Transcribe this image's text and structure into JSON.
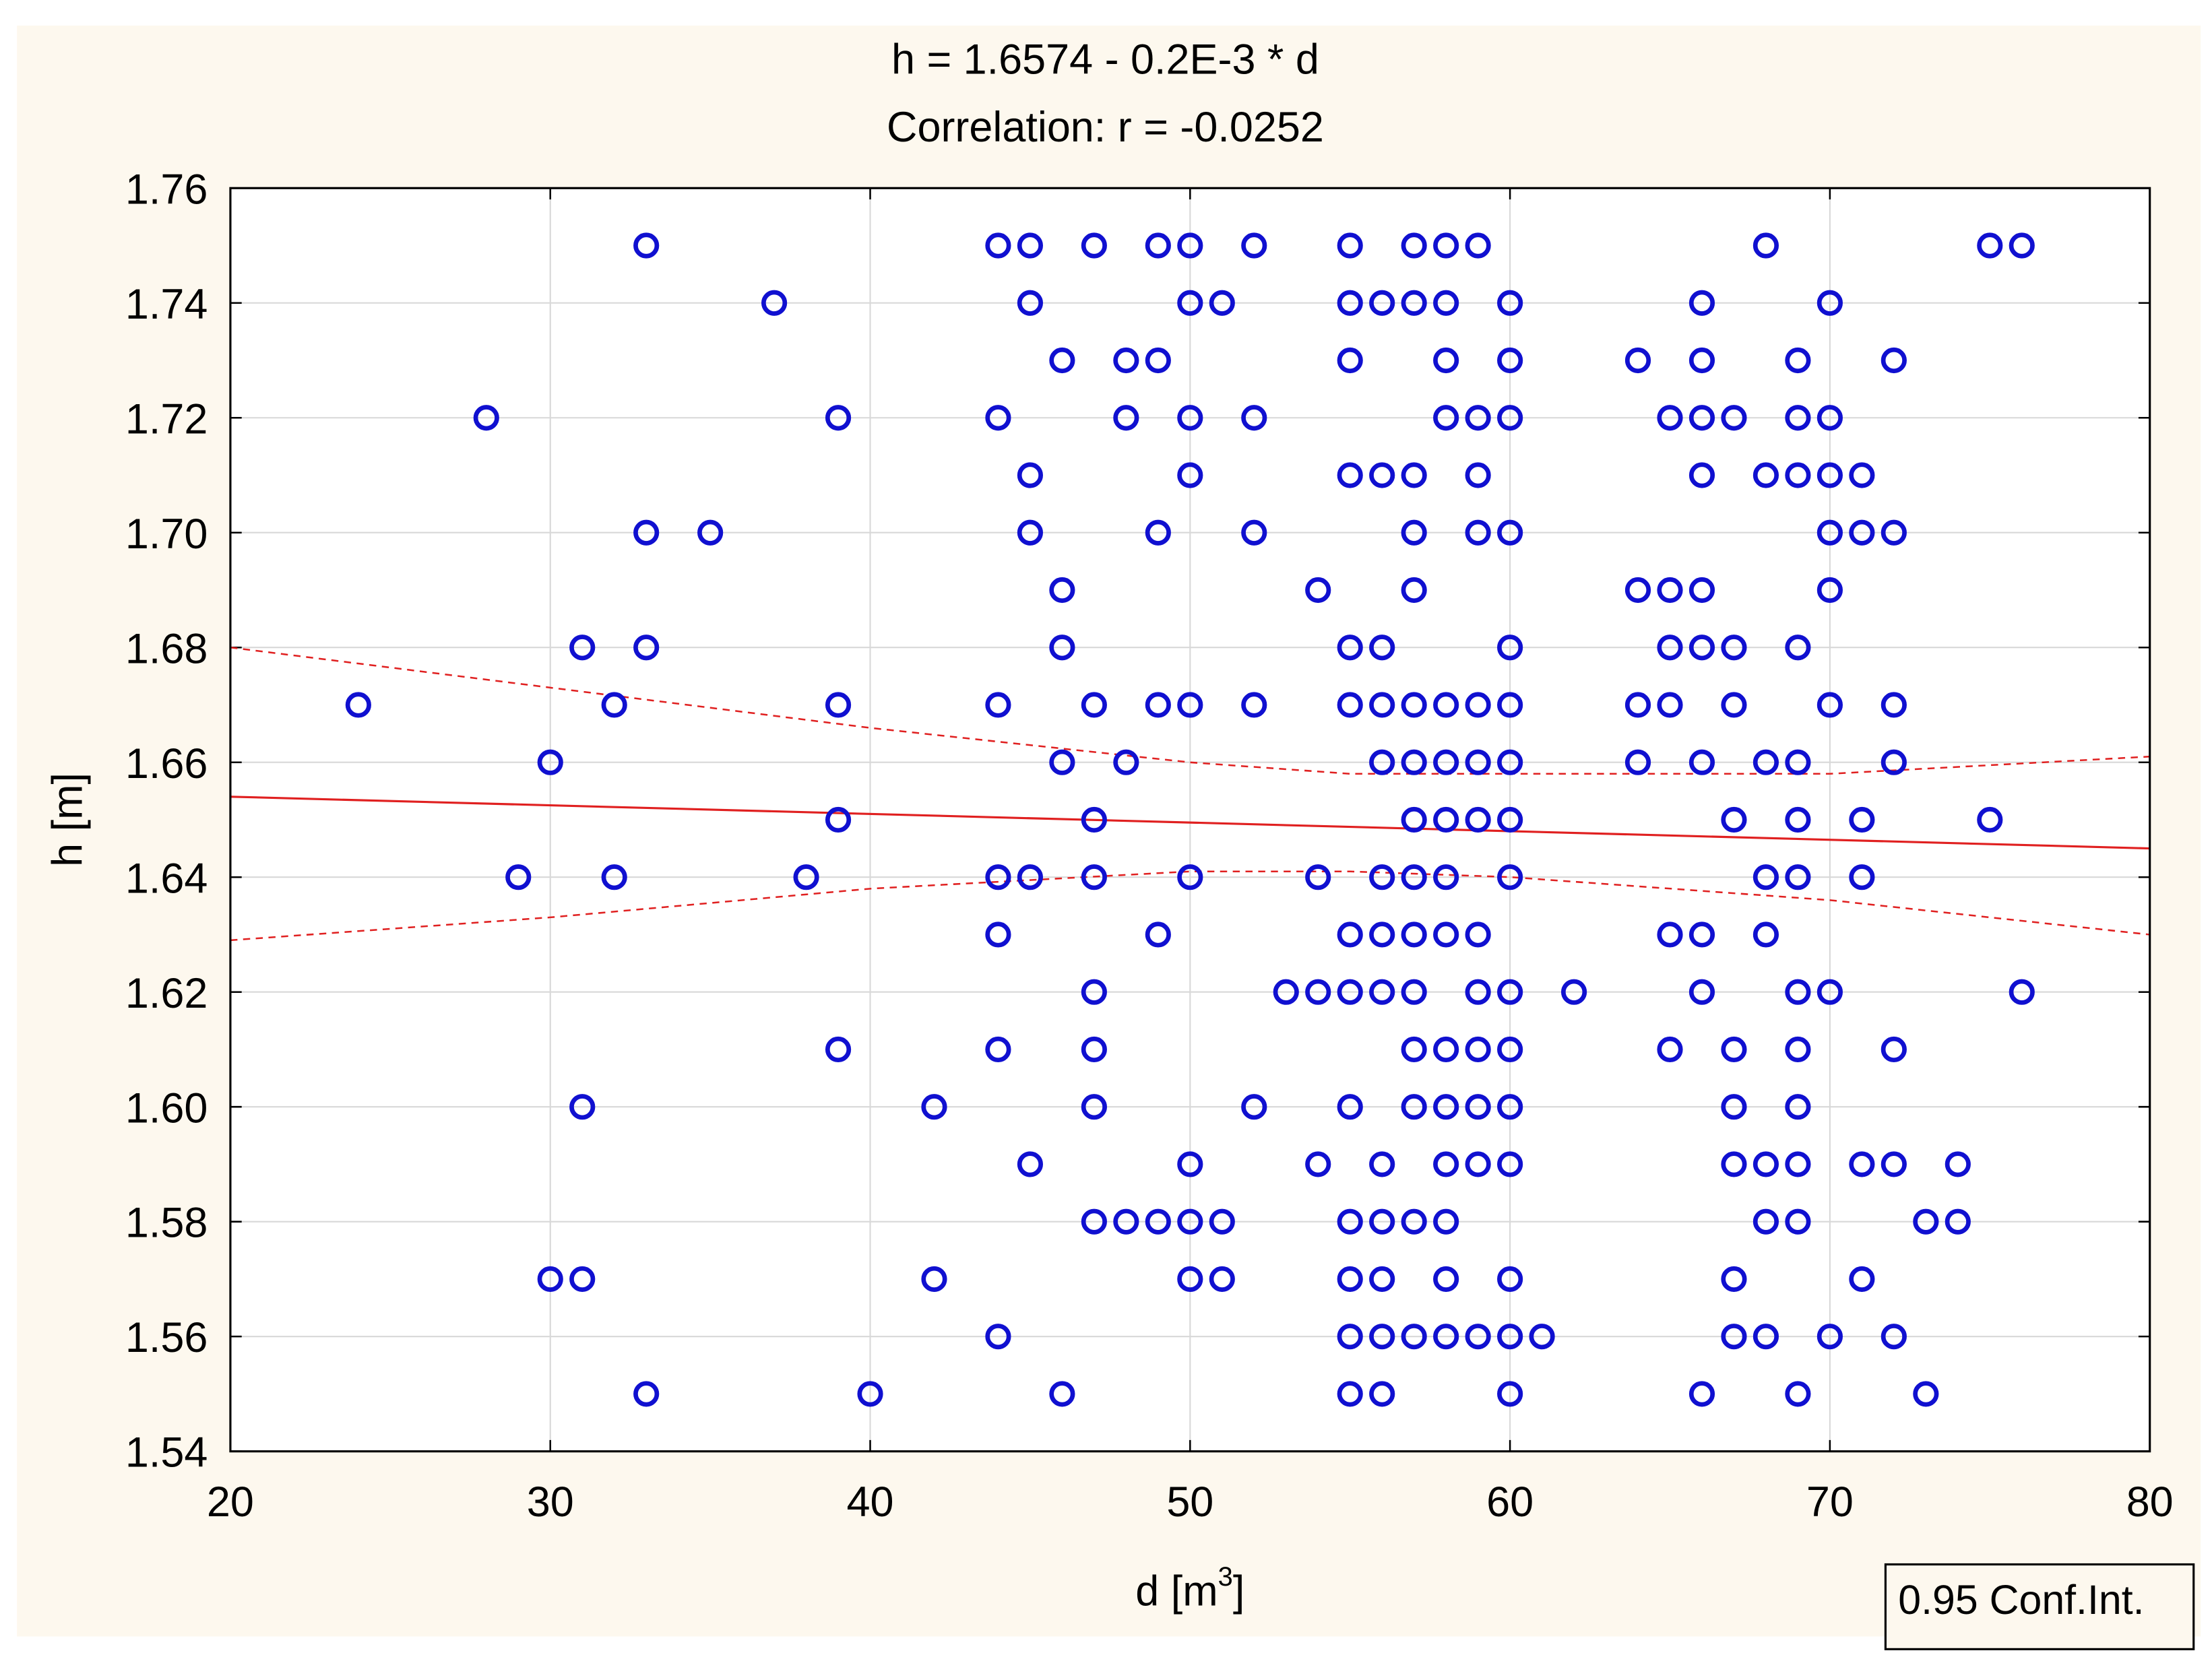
{
  "chart_data": {
    "type": "scatter",
    "title": "h = 1.6574 - 0.2E-3 * d",
    "subtitle": "Correlation: r = -0.0252",
    "xlabel": "d [m",
    "xlabel_sup": "3",
    "xlabel_end": "]",
    "ylabel": "h [m]",
    "xlim": [
      20,
      80
    ],
    "ylim": [
      1.54,
      1.76
    ],
    "xticks": [
      20,
      30,
      40,
      50,
      60,
      70,
      80
    ],
    "xtick_labels": [
      "20",
      "30",
      "40",
      "50",
      "60",
      "70",
      "80"
    ],
    "yticks": [
      1.54,
      1.56,
      1.58,
      1.6,
      1.62,
      1.64,
      1.66,
      1.68,
      1.7,
      1.72,
      1.74,
      1.76
    ],
    "ytick_labels": [
      "1.54",
      "1.56",
      "1.58",
      "1.60",
      "1.62",
      "1.64",
      "1.66",
      "1.68",
      "1.70",
      "1.72",
      "1.74",
      "1.76"
    ],
    "grid": true,
    "legend": {
      "label": "0.95 Conf.Int.",
      "placement": "bottom-right"
    },
    "colors": {
      "points": "#1010d0",
      "fit": "#e02020",
      "background": "#fdf8ee",
      "grid": "#d8d8d8"
    },
    "regression_line": [
      [
        20,
        1.654
      ],
      [
        80,
        1.645
      ]
    ],
    "ci_upper": [
      [
        20,
        1.68
      ],
      [
        30,
        1.673
      ],
      [
        40,
        1.666
      ],
      [
        50,
        1.66
      ],
      [
        55,
        1.658
      ],
      [
        60,
        1.658
      ],
      [
        70,
        1.658
      ],
      [
        80,
        1.661
      ]
    ],
    "ci_lower": [
      [
        20,
        1.629
      ],
      [
        30,
        1.633
      ],
      [
        40,
        1.638
      ],
      [
        50,
        1.641
      ],
      [
        55,
        1.641
      ],
      [
        60,
        1.64
      ],
      [
        70,
        1.636
      ],
      [
        80,
        1.63
      ]
    ],
    "rows": [
      {
        "h": 1.75,
        "d": [
          33,
          44,
          45,
          47,
          49,
          50,
          52,
          55,
          57,
          58,
          59,
          68,
          75,
          76
        ]
      },
      {
        "h": 1.74,
        "d": [
          37,
          45,
          50,
          51,
          55,
          56,
          57,
          58,
          60,
          66,
          70
        ]
      },
      {
        "h": 1.73,
        "d": [
          46,
          48,
          49,
          55,
          58,
          60,
          64,
          66,
          69,
          72
        ]
      },
      {
        "h": 1.72,
        "d": [
          28,
          39,
          44,
          48,
          50,
          52,
          58,
          59,
          60,
          65,
          66,
          67,
          69,
          70
        ]
      },
      {
        "h": 1.71,
        "d": [
          45,
          50,
          55,
          56,
          57,
          59,
          66,
          68,
          69,
          70,
          71
        ]
      },
      {
        "h": 1.7,
        "d": [
          33,
          35,
          45,
          49,
          52,
          57,
          59,
          60,
          70,
          71,
          72
        ]
      },
      {
        "h": 1.69,
        "d": [
          46,
          54,
          57,
          64,
          65,
          66,
          70
        ]
      },
      {
        "h": 1.68,
        "d": [
          31,
          33,
          46,
          55,
          56,
          60,
          65,
          66,
          67,
          69
        ]
      },
      {
        "h": 1.67,
        "d": [
          24,
          32,
          39,
          44,
          47,
          49,
          50,
          52,
          55,
          56,
          57,
          58,
          59,
          60,
          64,
          65,
          67,
          70,
          72
        ]
      },
      {
        "h": 1.66,
        "d": [
          30,
          46,
          48,
          56,
          57,
          58,
          59,
          60,
          64,
          66,
          68,
          69,
          72
        ]
      },
      {
        "h": 1.65,
        "d": [
          39,
          47,
          57,
          58,
          59,
          60,
          67,
          69,
          71,
          75
        ]
      },
      {
        "h": 1.64,
        "d": [
          29,
          32,
          38,
          44,
          45,
          47,
          50,
          54,
          56,
          57,
          58,
          60,
          68,
          69,
          71
        ]
      },
      {
        "h": 1.63,
        "d": [
          44,
          49,
          55,
          56,
          57,
          58,
          59,
          65,
          66,
          68
        ]
      },
      {
        "h": 1.62,
        "d": [
          47,
          53,
          54,
          55,
          56,
          57,
          59,
          60,
          62,
          66,
          69,
          70,
          76
        ]
      },
      {
        "h": 1.61,
        "d": [
          39,
          44,
          47,
          57,
          58,
          59,
          60,
          65,
          67,
          69,
          72
        ]
      },
      {
        "h": 1.6,
        "d": [
          31,
          42,
          47,
          52,
          55,
          57,
          58,
          59,
          60,
          67,
          69
        ]
      },
      {
        "h": 1.59,
        "d": [
          45,
          50,
          54,
          56,
          58,
          59,
          60,
          67,
          68,
          69,
          71,
          72,
          74
        ]
      },
      {
        "h": 1.58,
        "d": [
          47,
          48,
          49,
          50,
          51,
          55,
          56,
          57,
          58,
          68,
          69,
          73,
          74
        ]
      },
      {
        "h": 1.57,
        "d": [
          30,
          31,
          42,
          50,
          51,
          55,
          56,
          58,
          60,
          67,
          71
        ]
      },
      {
        "h": 1.56,
        "d": [
          44,
          55,
          56,
          57,
          58,
          59,
          60,
          61,
          67,
          68,
          70,
          72
        ]
      },
      {
        "h": 1.55,
        "d": [
          33,
          40,
          46,
          55,
          56,
          60,
          66,
          69,
          73
        ]
      }
    ]
  }
}
